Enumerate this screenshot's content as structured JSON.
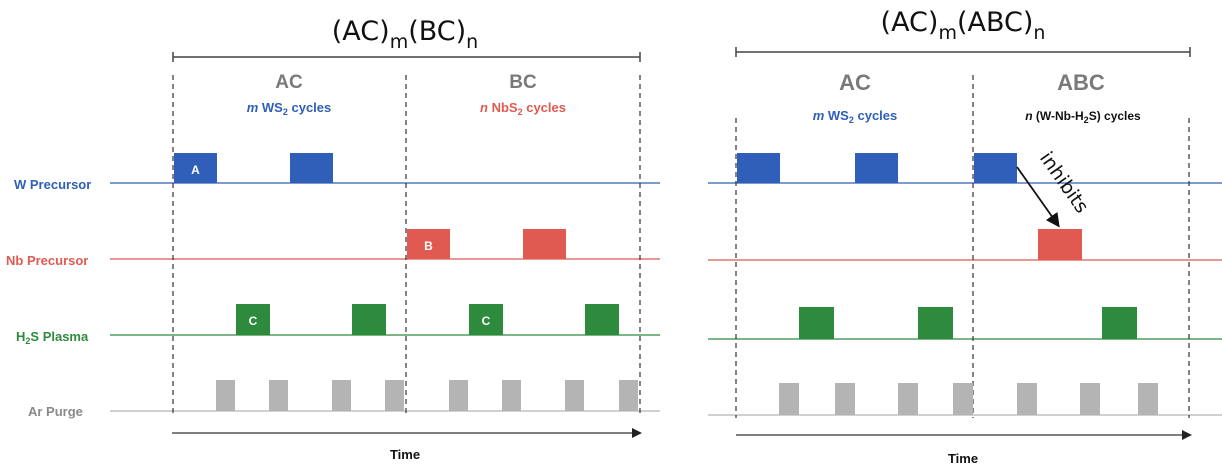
{
  "colors": {
    "w": "#2f5fb8",
    "nb": "#e05a52",
    "h2s": "#2e8b3e",
    "ar": "#b4b4b4",
    "ar_label": "#8a8a8a",
    "phase_header": "#7a7a7a",
    "text": "#111111"
  },
  "row_labels": {
    "w": "W Precursor",
    "nb": "Nb Precursor",
    "h2s_pre": "H",
    "h2s_sub": "2",
    "h2s_post": "S Plasma",
    "ar": "Ar Purge"
  },
  "left_panel": {
    "title_main_1": "(AC)",
    "title_sub_1": "m",
    "title_main_2": "(BC)",
    "title_sub_2": "n",
    "phase1": {
      "name": "AC",
      "var": "m",
      "pre": " WS",
      "sub": "2",
      "post": " cycles"
    },
    "phase2": {
      "name": "BC",
      "var": "n",
      "pre": " NbS",
      "sub": "2",
      "post": " cycles"
    },
    "pulse_letters": {
      "a": "A",
      "b": "B",
      "c1": "C",
      "c2": "C"
    },
    "axis_label": "Time"
  },
  "right_panel": {
    "title_main_1": "(AC)",
    "title_sub_1": "m",
    "title_main_2": "(ABC)",
    "title_sub_2": "n",
    "phase1": {
      "name": "AC",
      "var": "m",
      "pre": " WS",
      "sub": "2",
      "post": " cycles"
    },
    "phase2": {
      "name": "ABC",
      "var": "n",
      "pre": "  (W-Nb-H",
      "sub": "2",
      "post": "S) cycles"
    },
    "annotation": "inhibits",
    "axis_label": "Time"
  }
}
